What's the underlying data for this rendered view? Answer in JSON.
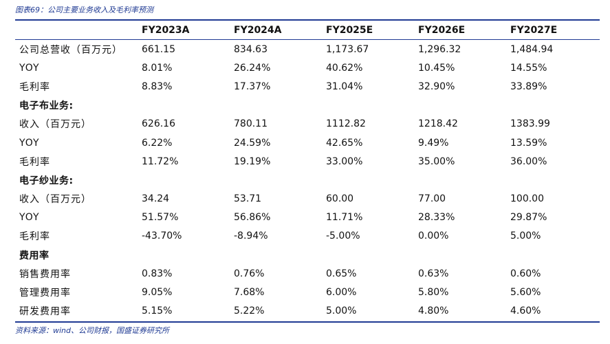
{
  "caption": "图表69：公司主要业务收入及毛利率预测",
  "source": "资料来源：wind、公司财报，国盛证券研究所",
  "columns": [
    "FY2023A",
    "FY2024A",
    "FY2025E",
    "FY2026E",
    "FY2027E"
  ],
  "rows": [
    {
      "type": "data",
      "label": "公司总营收（百万元）",
      "values": [
        "661.15",
        "834.63",
        "1,173.67",
        "1,296.32",
        "1,484.94"
      ]
    },
    {
      "type": "data",
      "label": "YOY",
      "values": [
        "8.01%",
        "26.24%",
        "40.62%",
        "10.45%",
        "14.55%"
      ]
    },
    {
      "type": "data",
      "label": "毛利率",
      "values": [
        "8.83%",
        "17.37%",
        "31.04%",
        "32.90%",
        "33.89%"
      ]
    },
    {
      "type": "section",
      "label": "电子布业务:"
    },
    {
      "type": "data",
      "label": "收入（百万元）",
      "values": [
        "626.16",
        "780.11",
        "1112.82",
        "1218.42",
        "1383.99"
      ]
    },
    {
      "type": "data",
      "label": "YOY",
      "values": [
        "6.22%",
        "24.59%",
        "42.65%",
        "9.49%",
        "13.59%"
      ]
    },
    {
      "type": "data",
      "label": "毛利率",
      "values": [
        "11.72%",
        "19.19%",
        "33.00%",
        "35.00%",
        "36.00%"
      ]
    },
    {
      "type": "section",
      "label": "电子纱业务:"
    },
    {
      "type": "data",
      "label": "收入（百万元）",
      "values": [
        "34.24",
        "53.71",
        "60.00",
        "77.00",
        "100.00"
      ]
    },
    {
      "type": "data",
      "label": "YOY",
      "values": [
        "51.57%",
        "56.86%",
        "11.71%",
        "28.33%",
        "29.87%"
      ]
    },
    {
      "type": "data",
      "label": "毛利率",
      "values": [
        "-43.70%",
        "-8.94%",
        "-5.00%",
        "0.00%",
        "5.00%"
      ]
    },
    {
      "type": "section",
      "label": "费用率"
    },
    {
      "type": "data",
      "label": "销售费用率",
      "values": [
        "0.83%",
        "0.76%",
        "0.65%",
        "0.63%",
        "0.60%"
      ]
    },
    {
      "type": "data",
      "label": "管理费用率",
      "values": [
        "9.05%",
        "7.68%",
        "6.00%",
        "5.80%",
        "5.60%"
      ]
    },
    {
      "type": "data",
      "label": "研发费用率",
      "values": [
        "5.15%",
        "5.22%",
        "5.00%",
        "4.80%",
        "4.60%"
      ]
    }
  ]
}
